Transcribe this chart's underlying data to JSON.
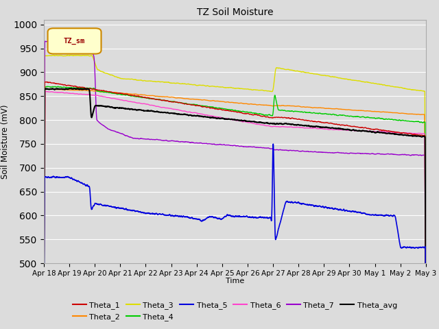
{
  "title": "TZ Soil Moisture",
  "xlabel": "Time",
  "ylabel": "Soil Moisture (mV)",
  "ylim": [
    500,
    1010
  ],
  "yticks": [
    500,
    550,
    600,
    650,
    700,
    750,
    800,
    850,
    900,
    950,
    1000
  ],
  "legend_label": "TZ_sm",
  "background_color": "#dcdcdc",
  "plot_bg_color": "#dcdcdc",
  "series_colors": {
    "Theta_1": "#cc0000",
    "Theta_2": "#ff8800",
    "Theta_3": "#dddd00",
    "Theta_4": "#00cc00",
    "Theta_5": "#0000dd",
    "Theta_6": "#ff44cc",
    "Theta_7": "#9900cc",
    "Theta_avg": "#000000"
  },
  "x_tick_labels": [
    "Apr 18",
    "Apr 19",
    "Apr 20",
    "Apr 21",
    "Apr 22",
    "Apr 23",
    "Apr 24",
    "Apr 25",
    "Apr 26",
    "Apr 27",
    "Apr 28",
    "Apr 29",
    "Apr 30",
    "May 1",
    "May 2",
    "May 3"
  ]
}
